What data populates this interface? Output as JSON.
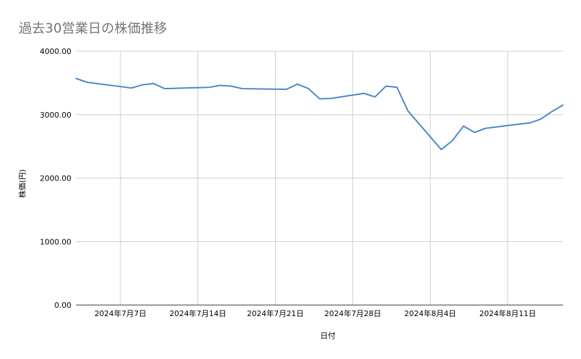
{
  "chart_data": {
    "type": "line",
    "title": "過去30営業日の株価推移",
    "xlabel": "日付",
    "ylabel": "株価(円)",
    "ylim": [
      0,
      4000
    ],
    "yticks": [
      {
        "value": 0,
        "label": "0.00"
      },
      {
        "value": 1000,
        "label": "1000.00"
      },
      {
        "value": 2000,
        "label": "2000.00"
      },
      {
        "value": 3000,
        "label": "3000.00"
      },
      {
        "value": 4000,
        "label": "4000.00"
      }
    ],
    "xlim": [
      "2024-07-03",
      "2024-08-16"
    ],
    "xticks": [
      {
        "date": "2024-07-07",
        "label": "2024年7月7日"
      },
      {
        "date": "2024-07-14",
        "label": "2024年7月14日"
      },
      {
        "date": "2024-07-21",
        "label": "2024年7月21日"
      },
      {
        "date": "2024-07-28",
        "label": "2024年7月28日"
      },
      {
        "date": "2024-08-04",
        "label": "2024年8月4日"
      },
      {
        "date": "2024-08-11",
        "label": "2024年8月11日"
      }
    ],
    "grid": true,
    "series": [
      {
        "color": "#4a86c8",
        "points": [
          {
            "x": "2024-07-03",
            "y": 3570
          },
          {
            "x": "2024-07-04",
            "y": 3510
          },
          {
            "x": "2024-07-08",
            "y": 3420
          },
          {
            "x": "2024-07-09",
            "y": 3470
          },
          {
            "x": "2024-07-10",
            "y": 3490
          },
          {
            "x": "2024-07-11",
            "y": 3410
          },
          {
            "x": "2024-07-15",
            "y": 3430
          },
          {
            "x": "2024-07-16",
            "y": 3460
          },
          {
            "x": "2024-07-17",
            "y": 3450
          },
          {
            "x": "2024-07-18",
            "y": 3410
          },
          {
            "x": "2024-07-22",
            "y": 3400
          },
          {
            "x": "2024-07-23",
            "y": 3480
          },
          {
            "x": "2024-07-24",
            "y": 3410
          },
          {
            "x": "2024-07-25",
            "y": 3250
          },
          {
            "x": "2024-07-26",
            "y": 3255
          },
          {
            "x": "2024-07-29",
            "y": 3335
          },
          {
            "x": "2024-07-30",
            "y": 3280
          },
          {
            "x": "2024-07-31",
            "y": 3450
          },
          {
            "x": "2024-08-01",
            "y": 3430
          },
          {
            "x": "2024-08-02",
            "y": 3055
          },
          {
            "x": "2024-08-05",
            "y": 2450
          },
          {
            "x": "2024-08-06",
            "y": 2590
          },
          {
            "x": "2024-08-07",
            "y": 2820
          },
          {
            "x": "2024-08-08",
            "y": 2720
          },
          {
            "x": "2024-08-09",
            "y": 2785
          },
          {
            "x": "2024-08-12",
            "y": 2850
          },
          {
            "x": "2024-08-13",
            "y": 2870
          },
          {
            "x": "2024-08-14",
            "y": 2930
          },
          {
            "x": "2024-08-15",
            "y": 3050
          },
          {
            "x": "2024-08-16",
            "y": 3150
          }
        ]
      }
    ]
  }
}
